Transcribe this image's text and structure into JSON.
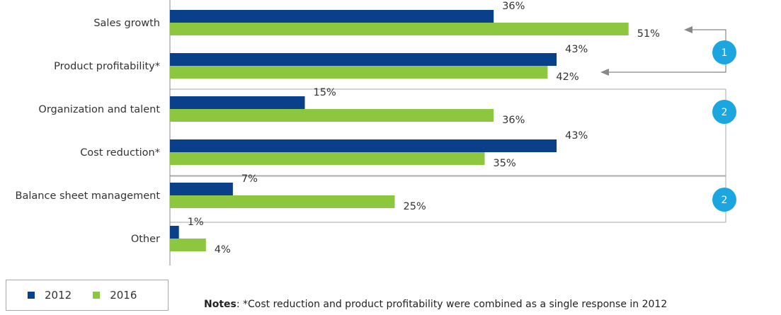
{
  "chart_data": {
    "type": "bar",
    "orientation": "horizontal",
    "categories": [
      "Sales growth",
      "Product profitability*",
      "Organization and talent",
      "Cost reduction*",
      "Balance sheet management",
      "Other"
    ],
    "series": [
      {
        "name": "2012",
        "color": "#0a3f8a",
        "values": [
          36,
          43,
          15,
          43,
          7,
          1
        ]
      },
      {
        "name": "2016",
        "color": "#8dc63f",
        "values": [
          51,
          42,
          36,
          35,
          25,
          4
        ]
      }
    ],
    "value_suffix": "%",
    "xlim": [
      0,
      100
    ],
    "grid": false,
    "legend": "bottom-left",
    "annotations": [
      {
        "label": "1",
        "categories": [
          "Sales growth",
          "Product profitability*"
        ],
        "style": "bracket-arrows"
      },
      {
        "label": "2",
        "categories": [
          "Organization and talent",
          "Cost reduction*"
        ],
        "style": "box"
      },
      {
        "label": "2",
        "categories": [
          "Balance sheet management"
        ],
        "style": "box"
      }
    ],
    "annotation_color": "#1ba6e0"
  },
  "notes": {
    "label": "Notes",
    "text": ": *Cost reduction and product profitability were combined as a single response in 2012"
  }
}
